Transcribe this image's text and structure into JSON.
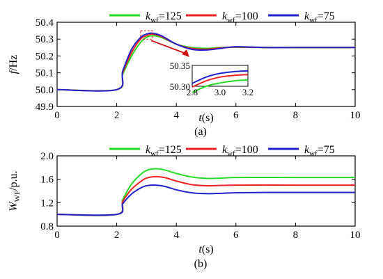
{
  "chart_data": [
    {
      "type": "line",
      "caption": "(a)",
      "xlabel_var": "t",
      "xlabel_unit": "(s)",
      "ylabel_var": "f",
      "ylabel_unit": "/Hz",
      "xlim": [
        0,
        10
      ],
      "ylim": [
        49.9,
        50.4
      ],
      "xticks": [
        0,
        2,
        4,
        6,
        8,
        10
      ],
      "yticks": [
        49.9,
        50.0,
        50.1,
        50.2,
        50.3,
        50.4
      ],
      "ytick_labels": [
        "49.9",
        "50.0",
        "50.1",
        "50.2",
        "50.3",
        "50.4"
      ],
      "legend_placement": "top",
      "series": [
        {
          "name_sym": "k",
          "name_sub": "wf",
          "name_val": "=125",
          "color": "#22dd22",
          "x": [
            0,
            2.0,
            2.2,
            2.5,
            2.8,
            3.0,
            3.2,
            3.5,
            4.0,
            4.5,
            5.0,
            5.5,
            6.0,
            7.0,
            8.0,
            10.0
          ],
          "y": [
            50.0,
            50.0,
            50.09,
            50.2,
            50.28,
            50.31,
            50.32,
            50.31,
            50.27,
            50.25,
            50.245,
            50.25,
            50.252,
            50.25,
            50.25,
            50.25
          ]
        },
        {
          "name_sym": "k",
          "name_sub": "wf",
          "name_val": "=100",
          "color": "#ee2222",
          "x": [
            0,
            2.0,
            2.2,
            2.5,
            2.8,
            3.0,
            3.2,
            3.5,
            4.0,
            4.5,
            5.0,
            5.5,
            6.0,
            7.0,
            8.0,
            10.0
          ],
          "y": [
            50.0,
            50.0,
            50.1,
            50.22,
            50.3,
            50.32,
            50.33,
            50.315,
            50.27,
            50.245,
            50.24,
            50.248,
            50.253,
            50.25,
            50.25,
            50.25
          ]
        },
        {
          "name_sym": "k",
          "name_sub": "wf",
          "name_val": "=75",
          "color": "#2222cc",
          "x": [
            0,
            2.0,
            2.2,
            2.5,
            2.8,
            3.0,
            3.2,
            3.5,
            4.0,
            4.5,
            5.0,
            5.5,
            6.0,
            7.0,
            8.0,
            10.0
          ],
          "y": [
            50.0,
            50.0,
            50.11,
            50.24,
            50.31,
            50.33,
            50.335,
            50.32,
            50.27,
            50.24,
            50.235,
            50.245,
            50.255,
            50.25,
            50.25,
            50.25
          ]
        }
      ],
      "inset": {
        "xlim": [
          2.8,
          3.2
        ],
        "ylim": [
          50.3,
          50.35
        ],
        "xticks": [
          2.8,
          3.0,
          3.2
        ],
        "xtick_labels": [
          "2.8",
          "3.0",
          "3.2"
        ],
        "yticks": [
          50.3,
          50.35
        ],
        "ytick_labels": [
          "50.30",
          "50.35"
        ],
        "series": [
          {
            "color": "#22dd22",
            "x": [
              2.8,
              2.9,
              3.0,
              3.1,
              3.2
            ],
            "y": [
              50.285,
              50.3,
              50.308,
              50.313,
              50.315
            ]
          },
          {
            "color": "#ee2222",
            "x": [
              2.8,
              2.9,
              3.0,
              3.1,
              3.2
            ],
            "y": [
              50.298,
              50.313,
              50.322,
              50.326,
              50.328
            ]
          },
          {
            "color": "#2222cc",
            "x": [
              2.8,
              2.9,
              3.0,
              3.1,
              3.2
            ],
            "y": [
              50.307,
              50.322,
              50.331,
              50.335,
              50.337
            ]
          }
        ]
      }
    },
    {
      "type": "line",
      "caption": "(b)",
      "xlabel_var": "t",
      "xlabel_unit": "(s)",
      "ylabel_var": "W",
      "ylabel_sub": "WF",
      "ylabel_unit": "/p.u.",
      "xlim": [
        0,
        10
      ],
      "ylim": [
        0.8,
        2.0
      ],
      "xticks": [
        0,
        2,
        4,
        6,
        8,
        10
      ],
      "yticks": [
        0.8,
        1.2,
        1.6,
        2.0
      ],
      "ytick_labels": [
        "0.8",
        "1.2",
        "1.6",
        "2.0"
      ],
      "legend_placement": "top",
      "series": [
        {
          "name_sym": "k",
          "name_sub": "wf",
          "name_val": "=125",
          "color": "#22dd22",
          "x": [
            0,
            2.0,
            2.2,
            2.5,
            2.8,
            3.0,
            3.3,
            3.6,
            4.0,
            4.5,
            5.0,
            5.5,
            6.0,
            7.0,
            8.0,
            10.0
          ],
          "y": [
            1.0,
            1.0,
            1.25,
            1.52,
            1.68,
            1.75,
            1.78,
            1.76,
            1.7,
            1.64,
            1.615,
            1.62,
            1.63,
            1.632,
            1.63,
            1.63
          ]
        },
        {
          "name_sym": "k",
          "name_sub": "wf",
          "name_val": "=100",
          "color": "#ee2222",
          "x": [
            0,
            2.0,
            2.2,
            2.5,
            2.8,
            3.0,
            3.3,
            3.6,
            4.0,
            4.5,
            5.0,
            5.5,
            6.0,
            7.0,
            8.0,
            10.0
          ],
          "y": [
            1.0,
            1.0,
            1.22,
            1.43,
            1.56,
            1.62,
            1.645,
            1.63,
            1.57,
            1.51,
            1.49,
            1.495,
            1.5,
            1.502,
            1.5,
            1.5
          ]
        },
        {
          "name_sym": "k",
          "name_sub": "wf",
          "name_val": "=75",
          "color": "#2222cc",
          "x": [
            0,
            2.0,
            2.2,
            2.5,
            2.8,
            3.0,
            3.3,
            3.6,
            4.0,
            4.5,
            5.0,
            5.5,
            6.0,
            7.0,
            8.0,
            10.0
          ],
          "y": [
            1.0,
            1.0,
            1.18,
            1.35,
            1.45,
            1.49,
            1.5,
            1.48,
            1.42,
            1.37,
            1.355,
            1.36,
            1.37,
            1.375,
            1.375,
            1.375
          ]
        }
      ]
    }
  ]
}
